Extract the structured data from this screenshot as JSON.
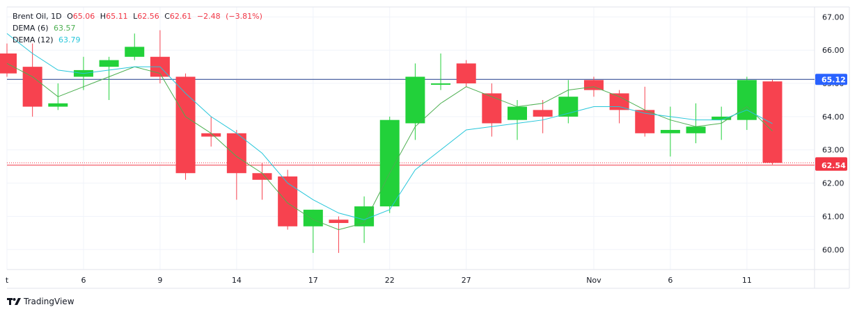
{
  "legend": {
    "symbol": "Brent Oil",
    "interval": "1D",
    "o_label": "O",
    "o_value": "65.06",
    "h_label": "H",
    "h_value": "65.11",
    "l_label": "L",
    "l_value": "62.56",
    "c_label": "C",
    "c_value": "62.61",
    "change": "−2.48",
    "change_pct": "(−3.81%)",
    "dema6_label": "DEMA (6)",
    "dema6_value": "63.57",
    "dema12_label": "DEMA (12)",
    "dema12_value": "63.79"
  },
  "brand": {
    "name": "TradingView"
  },
  "colors": {
    "up": "#22d13a",
    "down": "#f7424f",
    "dema6": "#4caf50",
    "dema12": "#26c6da",
    "price_line": "#1e3a8a",
    "last_price": "#f23645",
    "label_blue": "#2962ff",
    "grid": "#f0f3fa",
    "axis_text": "#131722"
  },
  "chart_data": {
    "type": "candlestick",
    "title": "Brent Oil, 1D",
    "ylim": [
      59.4,
      67.3
    ],
    "y_ticks": [
      60,
      61,
      62,
      63,
      64,
      65,
      66,
      67
    ],
    "x_ticks": [
      {
        "label": "t",
        "index": 0
      },
      {
        "label": "6",
        "index": 3
      },
      {
        "label": "9",
        "index": 6
      },
      {
        "label": "14",
        "index": 9
      },
      {
        "label": "17",
        "index": 12
      },
      {
        "label": "22",
        "index": 15
      },
      {
        "label": "27",
        "index": 18
      },
      {
        "label": "Nov",
        "index": 23
      },
      {
        "label": "6",
        "index": 26
      },
      {
        "label": "11",
        "index": 29
      }
    ],
    "candles": [
      {
        "o": 65.9,
        "h": 66.2,
        "l": 65.2,
        "c": 65.3
      },
      {
        "o": 65.5,
        "h": 66.2,
        "l": 64.0,
        "c": 64.3
      },
      {
        "o": 64.3,
        "h": 65.0,
        "l": 64.2,
        "c": 64.4
      },
      {
        "o": 65.2,
        "h": 65.8,
        "l": 64.8,
        "c": 65.4
      },
      {
        "o": 65.5,
        "h": 65.8,
        "l": 64.5,
        "c": 65.7
      },
      {
        "o": 65.8,
        "h": 66.5,
        "l": 65.7,
        "c": 66.1
      },
      {
        "o": 65.8,
        "h": 66.6,
        "l": 65.0,
        "c": 65.2
      },
      {
        "o": 65.2,
        "h": 65.3,
        "l": 62.1,
        "c": 62.3
      },
      {
        "o": 63.5,
        "h": 64.0,
        "l": 63.1,
        "c": 63.4
      },
      {
        "o": 63.5,
        "h": 63.6,
        "l": 61.5,
        "c": 62.3
      },
      {
        "o": 62.3,
        "h": 62.6,
        "l": 61.5,
        "c": 62.1
      },
      {
        "o": 62.2,
        "h": 62.4,
        "l": 60.6,
        "c": 60.7
      },
      {
        "o": 60.7,
        "h": 61.2,
        "l": 59.9,
        "c": 61.2
      },
      {
        "o": 60.9,
        "h": 61.0,
        "l": 59.9,
        "c": 60.8
      },
      {
        "o": 60.7,
        "h": 61.6,
        "l": 60.2,
        "c": 61.3
      },
      {
        "o": 61.3,
        "h": 64.0,
        "l": 61.1,
        "c": 63.9
      },
      {
        "o": 63.8,
        "h": 65.6,
        "l": 63.3,
        "c": 65.2
      },
      {
        "o": 65.0,
        "h": 65.9,
        "l": 64.8,
        "c": 65.0
      },
      {
        "o": 65.6,
        "h": 65.7,
        "l": 64.9,
        "c": 65.0
      },
      {
        "o": 64.7,
        "h": 65.0,
        "l": 63.4,
        "c": 63.8
      },
      {
        "o": 63.9,
        "h": 64.5,
        "l": 63.3,
        "c": 64.3
      },
      {
        "o": 64.2,
        "h": 64.5,
        "l": 63.5,
        "c": 64.0
      },
      {
        "o": 64.0,
        "h": 65.1,
        "l": 63.8,
        "c": 64.6
      },
      {
        "o": 65.1,
        "h": 65.2,
        "l": 64.6,
        "c": 64.8
      },
      {
        "o": 64.7,
        "h": 64.8,
        "l": 63.8,
        "c": 64.2
      },
      {
        "o": 64.2,
        "h": 64.9,
        "l": 63.4,
        "c": 63.5
      },
      {
        "o": 63.5,
        "h": 64.3,
        "l": 62.8,
        "c": 63.6
      },
      {
        "o": 63.5,
        "h": 64.4,
        "l": 63.2,
        "c": 63.7
      },
      {
        "o": 63.9,
        "h": 64.3,
        "l": 63.3,
        "c": 64.0
      },
      {
        "o": 63.9,
        "h": 65.2,
        "l": 63.6,
        "c": 65.1
      },
      {
        "o": 65.06,
        "h": 65.11,
        "l": 62.56,
        "c": 62.61
      }
    ],
    "series": [
      {
        "name": "DEMA (6)",
        "values": [
          65.6,
          65.2,
          64.6,
          64.9,
          65.2,
          65.5,
          65.3,
          64.0,
          63.5,
          62.8,
          62.3,
          61.4,
          60.9,
          60.6,
          60.8,
          62.3,
          63.7,
          64.4,
          64.9,
          64.6,
          64.3,
          64.4,
          64.8,
          64.9,
          64.6,
          64.2,
          63.9,
          63.7,
          63.8,
          64.3,
          63.57
        ]
      },
      {
        "name": "DEMA (12)",
        "values": [
          66.5,
          65.9,
          65.4,
          65.3,
          65.4,
          65.5,
          65.5,
          64.7,
          64.0,
          63.5,
          62.9,
          62.0,
          61.5,
          61.1,
          60.9,
          61.2,
          62.4,
          63.0,
          63.6,
          63.7,
          63.8,
          63.9,
          64.1,
          64.3,
          64.3,
          64.1,
          64.0,
          63.9,
          63.9,
          64.2,
          63.79
        ]
      }
    ],
    "price_lines": [
      {
        "value": 65.12,
        "label": "65.12",
        "color": "#2962ff",
        "line": "#1e3a8a",
        "style": "solid"
      },
      {
        "value": 62.61,
        "label": "62.61",
        "color": "#f23645",
        "line": "#f23645",
        "style": "dotted"
      },
      {
        "value": 62.54,
        "label": "62.54",
        "color": "#f23645",
        "line": "#f23645",
        "style": "solid"
      }
    ]
  }
}
